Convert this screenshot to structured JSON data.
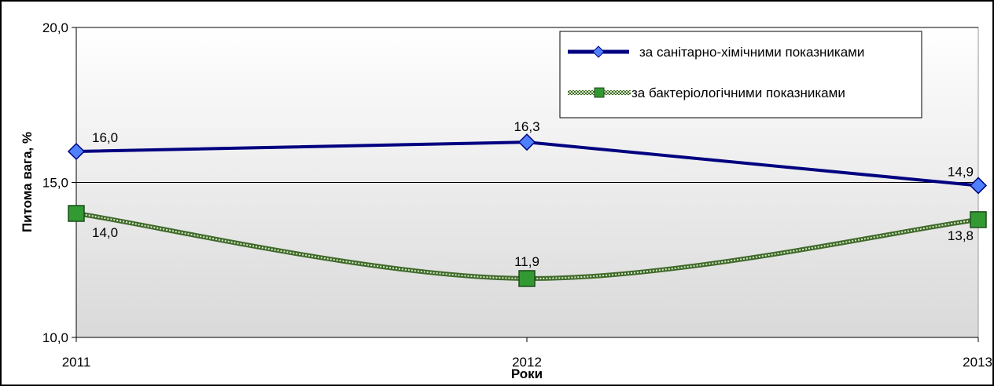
{
  "chart_data": {
    "type": "line",
    "title": "",
    "xlabel": "Роки",
    "ylabel": "Питома вага, %",
    "categories": [
      "2011",
      "2012",
      "2013"
    ],
    "ylim": [
      10,
      20
    ],
    "y_ticks": [
      10,
      15,
      20
    ],
    "y_tick_labels": [
      "10,0",
      "15,0",
      "20,0"
    ],
    "grid": "horizontal",
    "legend_position": "top-right",
    "series": [
      {
        "name": "за санітарно-хімічними показниками",
        "values": [
          16.0,
          16.3,
          14.9
        ],
        "labels": [
          "16,0",
          "16,3",
          "14,9"
        ],
        "color": "#000080",
        "marker": "diamond",
        "marker_color": "#4F81FF"
      },
      {
        "name": "за бактеріологічними показниками",
        "values": [
          14.0,
          11.9,
          13.8
        ],
        "labels": [
          "14,0",
          "11,9",
          "13,8"
        ],
        "color": "#6B8E4E",
        "marker": "square",
        "marker_color": "#339933"
      }
    ]
  }
}
